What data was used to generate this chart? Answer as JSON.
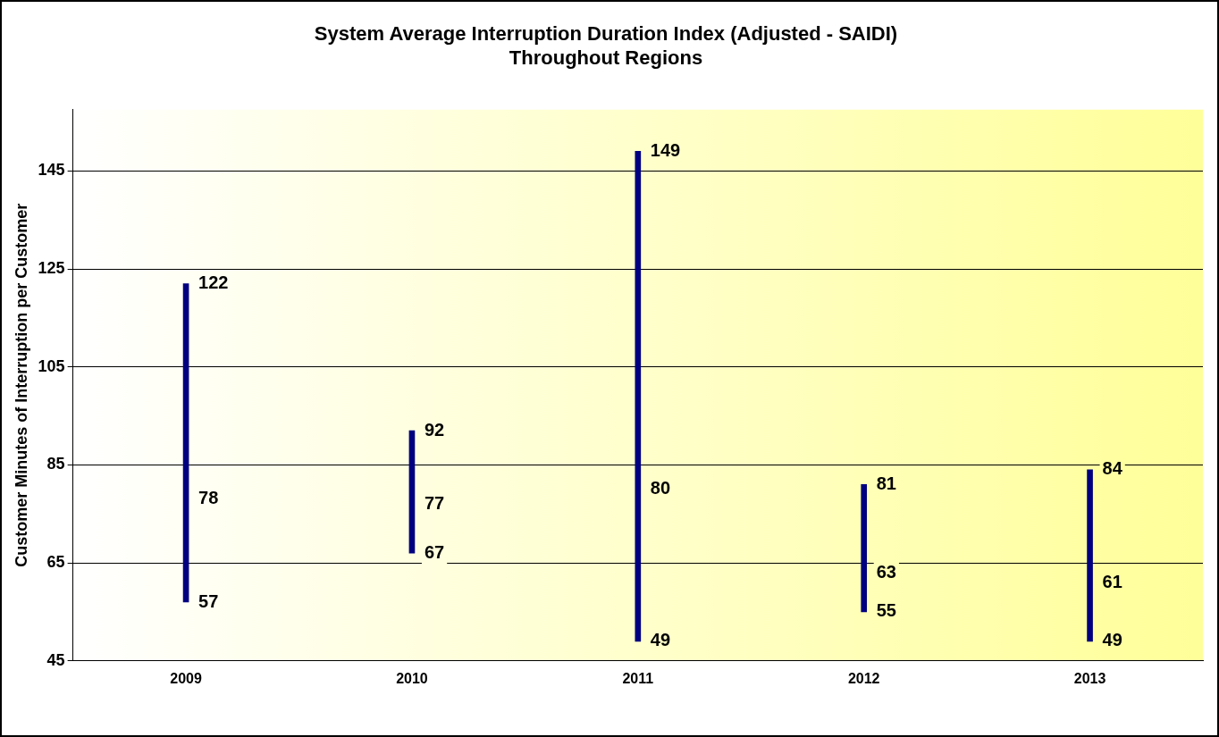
{
  "chart_data": {
    "type": "bar",
    "title": [
      "System Average Interruption Duration Index (Adjusted - SAIDI)",
      "Throughout Regions"
    ],
    "ylabel": "Customer Minutes of Interruption per Customer",
    "categories": [
      "2009",
      "2010",
      "2011",
      "2012",
      "2013"
    ],
    "base": [
      57,
      67,
      49,
      55,
      49
    ],
    "values": [
      65,
      25,
      100,
      26,
      35
    ],
    "color": "#000080",
    "ylim": [
      45,
      157.5
    ],
    "yticks": [
      45,
      65,
      85,
      105,
      125,
      145
    ],
    "grid": "y",
    "legend": false,
    "annotations": [
      {
        "text": "122",
        "x": "2009",
        "y": 122
      },
      {
        "text": "78",
        "x": "2009",
        "y": 78
      },
      {
        "text": "57",
        "x": "2009",
        "y": 57
      },
      {
        "text": "92",
        "x": "2010",
        "y": 92
      },
      {
        "text": "77",
        "x": "2010",
        "y": 77
      },
      {
        "text": "67",
        "x": "2010",
        "y": 67
      },
      {
        "text": "149",
        "x": "2011",
        "y": 149
      },
      {
        "text": "80",
        "x": "2011",
        "y": 80
      },
      {
        "text": "49",
        "x": "2011",
        "y": 49
      },
      {
        "text": "81",
        "x": "2012",
        "y": 81
      },
      {
        "text": "63",
        "x": "2012",
        "y": 63
      },
      {
        "text": "55",
        "x": "2012",
        "y": 55
      },
      {
        "text": "84",
        "x": "2013",
        "y": 84
      },
      {
        "text": "61",
        "x": "2013",
        "y": 61
      },
      {
        "text": "49",
        "x": "2013",
        "y": 49
      }
    ]
  }
}
